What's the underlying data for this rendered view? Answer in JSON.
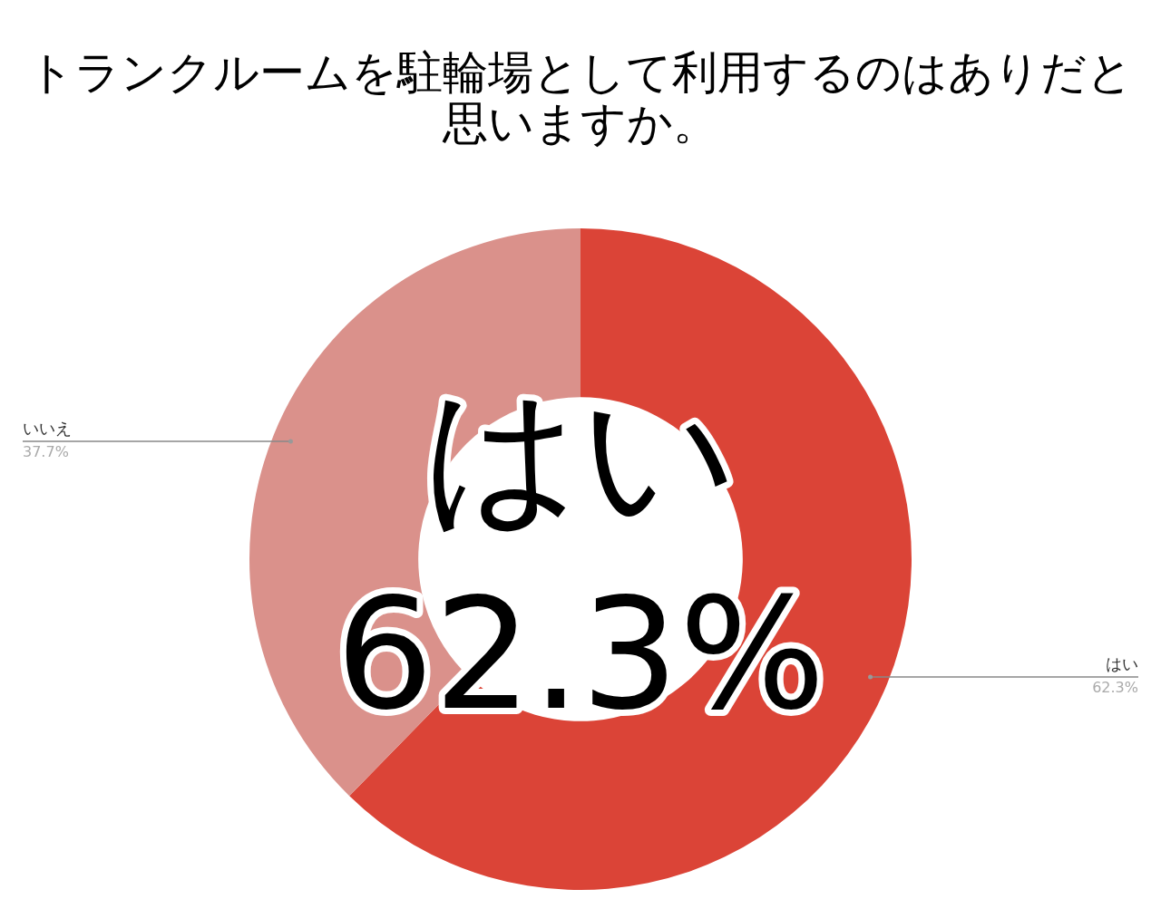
{
  "chart_data": {
    "type": "donut",
    "title": "トランクルームを駐輪場として利用するのはありだと思いますか。",
    "categories": [
      "はい",
      "いいえ"
    ],
    "values": [
      62.3,
      37.7
    ],
    "colors": [
      "#db4437",
      "#da918b"
    ],
    "value_labels": [
      "62.3%",
      "37.7%"
    ],
    "annotations": [
      "はい",
      "62.3%"
    ],
    "legend": false
  }
}
